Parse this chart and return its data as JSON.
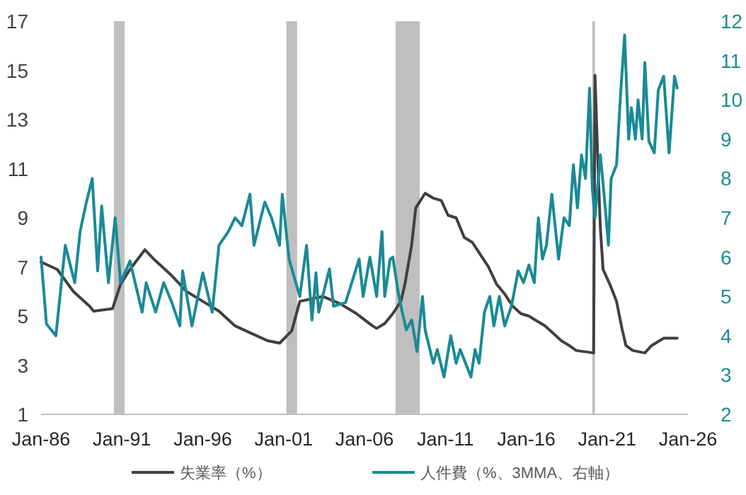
{
  "chart_data": {
    "type": "line",
    "xlim": [
      "1986-01",
      "2026-01"
    ],
    "xticks": [
      {
        "value": "1986-01",
        "label": "Jan-86"
      },
      {
        "value": "1991-01",
        "label": "Jan-91"
      },
      {
        "value": "1996-01",
        "label": "Jan-96"
      },
      {
        "value": "2001-01",
        "label": "Jan-01"
      },
      {
        "value": "2006-01",
        "label": "Jan-06"
      },
      {
        "value": "2011-01",
        "label": "Jan-11"
      },
      {
        "value": "2016-01",
        "label": "Jan-16"
      },
      {
        "value": "2021-01",
        "label": "Jan-21"
      },
      {
        "value": "2026-01",
        "label": "Jan-26"
      }
    ],
    "ylim": [
      1,
      17
    ],
    "yticks": [
      1,
      3,
      5,
      7,
      9,
      11,
      13,
      15,
      17
    ],
    "y2lim": [
      2,
      12
    ],
    "y2ticks": [
      2,
      3,
      4,
      5,
      6,
      7,
      8,
      9,
      10,
      11,
      12
    ],
    "grid": false,
    "legend": "bottom",
    "bands": [
      {
        "axis": "x",
        "from": "1990-07",
        "to": "1991-03",
        "color": "#bfbfbf"
      },
      {
        "axis": "x",
        "from": "2001-03",
        "to": "2001-11",
        "color": "#bfbfbf"
      },
      {
        "axis": "x",
        "from": "2007-12",
        "to": "2009-06",
        "color": "#bfbfbf"
      },
      {
        "axis": "x",
        "from": "2020-02",
        "to": "2020-04",
        "color": "#bfbfbf"
      }
    ],
    "series": [
      {
        "name": "失業率（%）",
        "color": "#404040",
        "x": [
          "1986-01",
          "1987-01",
          "1988-01",
          "1989-01",
          "1989-04",
          "1990-06",
          "1990-12",
          "1991-07",
          "1992-06",
          "1993-01",
          "1994-01",
          "1995-01",
          "1996-01",
          "1997-01",
          "1998-01",
          "1999-01",
          "2000-01",
          "2000-10",
          "2001-07",
          "2002-01",
          "2003-06",
          "2004-07",
          "2005-07",
          "2006-07",
          "2006-10",
          "2007-04",
          "2007-10",
          "2008-04",
          "2008-07",
          "2008-12",
          "2009-03",
          "2009-10",
          "2010-04",
          "2010-10",
          "2011-03",
          "2011-09",
          "2012-03",
          "2012-09",
          "2013-03",
          "2013-09",
          "2014-03",
          "2014-09",
          "2015-03",
          "2015-09",
          "2016-03",
          "2016-09",
          "2017-03",
          "2017-09",
          "2018-03",
          "2018-09",
          "2019-02",
          "2020-03",
          "2020-04",
          "2020-06",
          "2020-08",
          "2020-10",
          "2021-03",
          "2021-08",
          "2021-12",
          "2022-03",
          "2022-08",
          "2023-05",
          "2023-10",
          "2024-07",
          "2025-05"
        ],
        "values": [
          7.2,
          6.9,
          6.0,
          5.4,
          5.2,
          5.3,
          6.3,
          6.9,
          7.7,
          7.3,
          6.7,
          6.0,
          5.6,
          5.2,
          4.6,
          4.3,
          4.0,
          3.9,
          4.4,
          5.6,
          5.8,
          5.5,
          5.1,
          4.6,
          4.5,
          4.7,
          5.1,
          5.6,
          6.3,
          7.9,
          9.4,
          10.0,
          9.8,
          9.7,
          9.1,
          9.0,
          8.2,
          8.0,
          7.5,
          7.0,
          6.3,
          5.9,
          5.4,
          5.1,
          5.0,
          4.8,
          4.6,
          4.3,
          4.0,
          3.8,
          3.6,
          3.5,
          14.8,
          11.5,
          8.6,
          6.9,
          6.3,
          5.6,
          4.5,
          3.8,
          3.6,
          3.5,
          3.8,
          4.1,
          4.1
        ]
      },
      {
        "name": "人件費（%、3MMA、右軸）",
        "color": "#1a8a96",
        "axis": "y2",
        "x": [
          "1986-01",
          "1986-05",
          "1986-12",
          "1987-07",
          "1988-02",
          "1988-06",
          "1988-10",
          "1989-03",
          "1989-07",
          "1989-10",
          "1990-03",
          "1990-08",
          "1990-12",
          "1991-07",
          "1992-04",
          "1992-07",
          "1993-02",
          "1993-08",
          "1994-02",
          "1994-08",
          "1994-10",
          "1995-05",
          "1996-01",
          "1996-08",
          "1997-01",
          "1997-08",
          "1998-01",
          "1998-06",
          "1998-12",
          "1999-03",
          "1999-11",
          "2000-04",
          "2000-10",
          "2000-12",
          "2001-05",
          "2002-01",
          "2002-06",
          "2002-10",
          "2003-01",
          "2003-03",
          "2003-11",
          "2004-02",
          "2004-11",
          "2005-09",
          "2005-12",
          "2006-05",
          "2006-10",
          "2007-02",
          "2007-04",
          "2007-08",
          "2007-10",
          "2008-02",
          "2008-05",
          "2008-08",
          "2008-12",
          "2009-04",
          "2009-08",
          "2009-10",
          "2010-04",
          "2010-07",
          "2010-12",
          "2011-05",
          "2011-09",
          "2011-12",
          "2012-04",
          "2012-08",
          "2012-11",
          "2013-02",
          "2013-06",
          "2013-10",
          "2014-01",
          "2014-05",
          "2014-09",
          "2015-02",
          "2015-07",
          "2015-11",
          "2016-03",
          "2016-07",
          "2016-10",
          "2017-01",
          "2017-04",
          "2017-08",
          "2018-01",
          "2018-05",
          "2018-09",
          "2018-12",
          "2019-03",
          "2019-06",
          "2019-09",
          "2019-12",
          "2020-02",
          "2020-04",
          "2020-08",
          "2020-11",
          "2021-02",
          "2021-04",
          "2021-08",
          "2021-11",
          "2022-02",
          "2022-05",
          "2022-07",
          "2022-10",
          "2022-12",
          "2023-03",
          "2023-05",
          "2023-08",
          "2023-12",
          "2024-03",
          "2024-07",
          "2024-11",
          "2025-03",
          "2025-05"
        ],
        "values": [
          6.0,
          4.3,
          4.0,
          6.3,
          5.35,
          6.65,
          7.3,
          8.0,
          5.65,
          7.3,
          5.35,
          7.0,
          5.35,
          5.9,
          4.6,
          5.35,
          4.6,
          5.35,
          4.85,
          4.25,
          5.65,
          4.25,
          5.6,
          4.6,
          6.3,
          6.65,
          7.0,
          6.8,
          7.6,
          6.3,
          7.4,
          7.0,
          6.3,
          7.6,
          5.95,
          5.0,
          6.3,
          4.4,
          5.6,
          4.6,
          5.7,
          4.75,
          4.85,
          5.95,
          5.0,
          6.0,
          5.0,
          6.65,
          5.0,
          5.95,
          6.0,
          5.1,
          4.6,
          4.15,
          4.4,
          3.6,
          5.0,
          4.15,
          3.3,
          3.65,
          2.95,
          4.0,
          3.3,
          3.65,
          3.3,
          2.95,
          3.65,
          3.3,
          4.6,
          5.0,
          4.25,
          5.0,
          4.25,
          4.75,
          5.65,
          5.35,
          5.8,
          5.35,
          7.0,
          5.95,
          6.3,
          7.6,
          5.95,
          7.0,
          6.8,
          8.35,
          7.25,
          8.6,
          8.0,
          10.3,
          7.75,
          7.0,
          8.6,
          7.5,
          6.3,
          8.0,
          8.35,
          10.15,
          11.65,
          9.0,
          9.8,
          9.0,
          10.0,
          9.0,
          10.95,
          8.95,
          8.65,
          10.25,
          10.6,
          8.65,
          10.6,
          10.3
        ]
      }
    ]
  }
}
